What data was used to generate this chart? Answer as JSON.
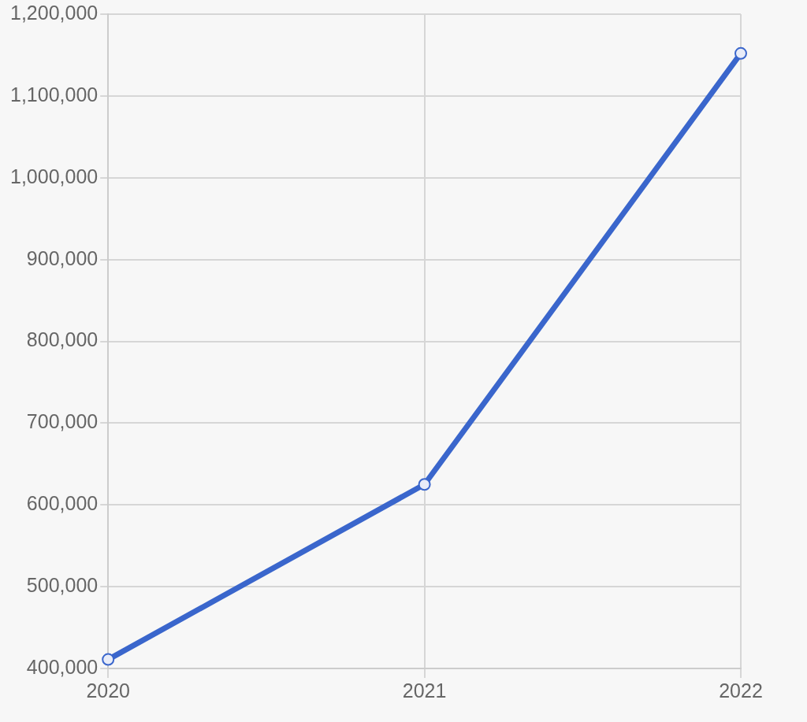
{
  "chart_data": {
    "type": "line",
    "categories": [
      "2020",
      "2021",
      "2022"
    ],
    "series": [
      {
        "color": "#3a66cc",
        "values": [
          411000,
          625000,
          1152000
        ]
      }
    ],
    "ylim": [
      400000,
      1200000
    ],
    "yticks": [
      {
        "value": 400000,
        "label": "400,000"
      },
      {
        "value": 500000,
        "label": "500,000"
      },
      {
        "value": 600000,
        "label": "600,000"
      },
      {
        "value": 700000,
        "label": "700,000"
      },
      {
        "value": 800000,
        "label": "800,000"
      },
      {
        "value": 900000,
        "label": "900,000"
      },
      {
        "value": 1000000,
        "label": "1,000,000"
      },
      {
        "value": 1100000,
        "label": "1,100,000"
      },
      {
        "value": 1200000,
        "label": "1,200,000"
      }
    ],
    "grid": true,
    "marker": "circle",
    "line_style": "solid",
    "legend": false
  }
}
